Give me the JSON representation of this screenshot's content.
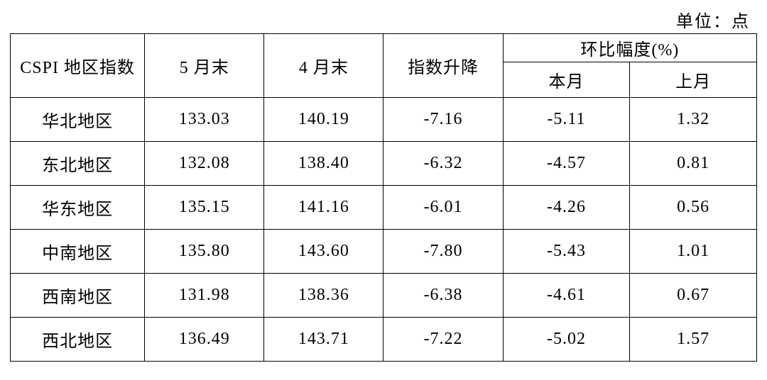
{
  "unit_label": "单位：点",
  "table": {
    "type": "table",
    "background_color": "#ffffff",
    "border_color": "#000000",
    "text_color": "#000000",
    "fontsize": 24,
    "columns": {
      "c1": "CSPI 地区指数",
      "c2": "5 月末",
      "c3": "4 月末",
      "c4": "指数升降",
      "group": "环比幅度(%)",
      "c5": "本月",
      "c6": "上月"
    },
    "col_widths_pct": [
      18,
      16,
      16,
      16,
      17,
      17
    ],
    "rows": [
      {
        "region": "华北地区",
        "may": "133.03",
        "apr": "140.19",
        "diff": "-7.16",
        "mom_this": "-5.11",
        "mom_prev": "1.32"
      },
      {
        "region": "东北地区",
        "may": "132.08",
        "apr": "138.40",
        "diff": "-6.32",
        "mom_this": "-4.57",
        "mom_prev": "0.81"
      },
      {
        "region": "华东地区",
        "may": "135.15",
        "apr": "141.16",
        "diff": "-6.01",
        "mom_this": "-4.26",
        "mom_prev": "0.56"
      },
      {
        "region": "中南地区",
        "may": "135.80",
        "apr": "143.60",
        "diff": "-7.80",
        "mom_this": "-5.43",
        "mom_prev": "1.01"
      },
      {
        "region": "西南地区",
        "may": "131.98",
        "apr": "138.36",
        "diff": "-6.38",
        "mom_this": "-4.61",
        "mom_prev": "0.67"
      },
      {
        "region": "西北地区",
        "may": "136.49",
        "apr": "143.71",
        "diff": "-7.22",
        "mom_this": "-5.02",
        "mom_prev": "1.57"
      }
    ]
  }
}
